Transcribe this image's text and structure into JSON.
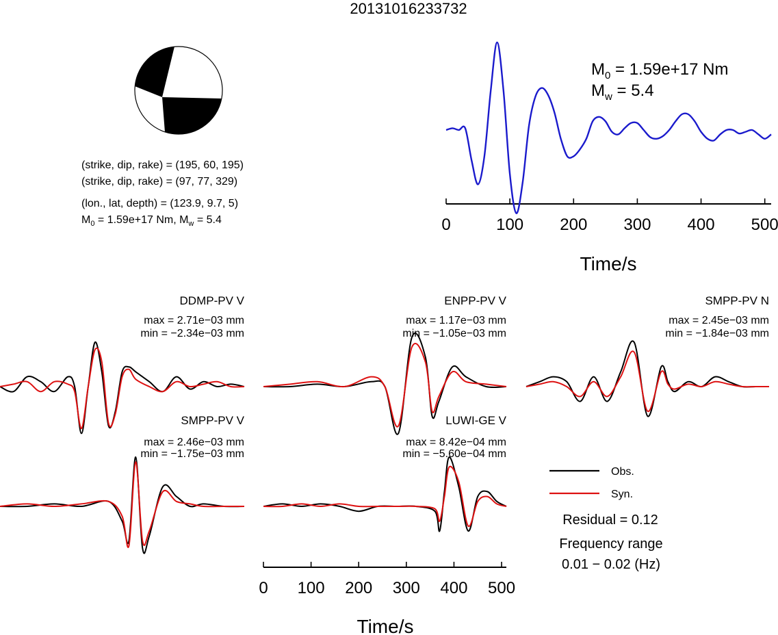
{
  "title": "20131016233732",
  "beachball": {
    "colors": {
      "compressional": "#000000",
      "dilatational": "#ffffff",
      "outline": "#000000"
    }
  },
  "solution": {
    "np1": "(strike, dip, rake) = (195, 60, 195)",
    "np2": "(strike, dip, rake) = (97, 77, 329)",
    "location": "(lon., lat, depth) = (123.9, 9.7, 5)",
    "moment_parts": [
      "M",
      "0",
      " = 1.59e+17 Nm, M",
      "w",
      " = 5.4"
    ]
  },
  "stf_annot": {
    "m0": [
      "M",
      "0",
      " = 1.59e+17 Nm"
    ],
    "mw": [
      "M",
      "w",
      " = 5.4"
    ]
  },
  "legend": {
    "obs_label": "Obs.",
    "syn_label": "Syn.",
    "residual": "Residual = 0.12",
    "freq_title": "Frequency range",
    "freq_value": "0.01 − 0.02 (Hz)"
  },
  "colors": {
    "stf": "#1a1acc",
    "obs": "#000000",
    "syn": "#dd1111"
  },
  "chart_data": [
    {
      "type": "line",
      "name": "source-time-function",
      "xlabel": "Time/s",
      "xlim": [
        0,
        510
      ],
      "ticks": [
        0,
        100,
        200,
        300,
        400,
        500
      ],
      "tick_labels": [
        "0",
        "100",
        "200",
        "300",
        "400",
        "500"
      ],
      "x": [
        0,
        10,
        20,
        30,
        40,
        50,
        60,
        70,
        80,
        90,
        100,
        110,
        120,
        130,
        140,
        150,
        160,
        170,
        180,
        190,
        200,
        210,
        220,
        230,
        240,
        250,
        260,
        270,
        280,
        290,
        300,
        310,
        320,
        330,
        340,
        350,
        360,
        370,
        380,
        390,
        400,
        410,
        420,
        430,
        440,
        450,
        460,
        470,
        480,
        490,
        500,
        510
      ],
      "y": [
        0.0,
        0.02,
        0.0,
        0.02,
        -0.35,
        -0.62,
        -0.3,
        0.45,
        1.0,
        0.45,
        -0.5,
        -0.95,
        -0.6,
        0.05,
        0.38,
        0.48,
        0.4,
        0.2,
        -0.1,
        -0.3,
        -0.3,
        -0.22,
        -0.1,
        0.1,
        0.15,
        0.1,
        -0.02,
        -0.05,
        0.02,
        0.08,
        0.08,
        0.0,
        -0.08,
        -0.1,
        -0.07,
        0.0,
        0.1,
        0.18,
        0.18,
        0.1,
        -0.02,
        -0.1,
        -0.12,
        -0.05,
        0.0,
        0.0,
        -0.04,
        -0.02,
        0.0,
        -0.05,
        -0.1,
        -0.05
      ],
      "ylim": [
        -1.0,
        1.05
      ]
    },
    {
      "type": "line",
      "name": "waveforms",
      "xlabel": "Time/s",
      "xlim": [
        0,
        510
      ],
      "ticks": [
        0,
        100,
        200,
        300,
        400,
        500
      ],
      "tick_labels": [
        "0",
        "100",
        "200",
        "300",
        "400",
        "500"
      ],
      "series_legend": [
        "Obs.",
        "Syn."
      ],
      "stations": [
        {
          "label": "DDMP-PV V",
          "max": "max = 2.71e−03 mm",
          "min": "min = −2.34e−03 mm",
          "t": [
            0,
            20,
            40,
            60,
            80,
            100,
            110,
            120,
            130,
            140,
            150,
            160,
            170,
            180,
            190,
            200,
            220,
            240,
            260,
            280,
            300,
            320,
            340,
            360
          ],
          "obs": [
            0.0,
            -0.1,
            0.2,
            0.1,
            -0.1,
            0.2,
            0.0,
            -0.95,
            0.0,
            0.9,
            0.3,
            -0.8,
            -0.5,
            0.3,
            0.4,
            0.3,
            0.1,
            -0.1,
            0.2,
            -0.05,
            0.1,
            0.0,
            0.05,
            0.0
          ],
          "syn": [
            0.0,
            0.05,
            0.1,
            -0.1,
            0.1,
            0.05,
            -0.1,
            -0.85,
            0.0,
            0.75,
            0.5,
            -0.75,
            -0.55,
            0.2,
            0.35,
            0.15,
            0.0,
            -0.1,
            0.1,
            0.0,
            0.05,
            0.1,
            0.0,
            0.0
          ]
        },
        {
          "label": "ENPP-PV V",
          "max": "max = 1.17e−03 mm",
          "min": "min = −1.05e−03 mm",
          "t": [
            0,
            40,
            80,
            120,
            160,
            180,
            200,
            220,
            240,
            250,
            260,
            280,
            300,
            330,
            360
          ],
          "obs": [
            0.0,
            0.0,
            0.05,
            0.0,
            0.1,
            0.0,
            -0.95,
            1.0,
            0.6,
            -0.6,
            -0.3,
            0.4,
            0.2,
            0.0,
            0.0
          ],
          "syn": [
            0.0,
            0.05,
            0.1,
            0.0,
            0.2,
            0.0,
            -0.8,
            0.8,
            0.5,
            -0.5,
            -0.2,
            0.3,
            0.1,
            0.05,
            0.0
          ]
        },
        {
          "label": "SMPP-PV N",
          "max": "max = 2.45e−03 mm",
          "min": "min = −1.84e−03 mm",
          "t": [
            0,
            20,
            40,
            60,
            80,
            100,
            120,
            140,
            160,
            180,
            200,
            210,
            220,
            240,
            260,
            280,
            300,
            320,
            340,
            360
          ],
          "obs": [
            0.0,
            0.1,
            0.2,
            0.1,
            -0.3,
            0.2,
            -0.3,
            0.3,
            0.9,
            -0.6,
            0.4,
            0.1,
            -0.1,
            0.1,
            0.0,
            0.2,
            0.1,
            0.0,
            0.0,
            0.0
          ],
          "syn": [
            0.0,
            0.05,
            0.1,
            0.0,
            -0.2,
            0.1,
            -0.2,
            0.2,
            0.7,
            -0.5,
            0.3,
            0.05,
            -0.05,
            0.05,
            0.0,
            0.1,
            0.05,
            0.0,
            0.0,
            0.0
          ]
        },
        {
          "label": "SMPP-PV V",
          "max": "max = 2.46e−03 mm",
          "min": "min = −1.75e−03 mm",
          "t": [
            0,
            40,
            80,
            120,
            160,
            180,
            190,
            200,
            210,
            220,
            240,
            260,
            280,
            300,
            330,
            360
          ],
          "obs": [
            0.0,
            0.0,
            0.05,
            0.0,
            0.1,
            -0.3,
            -0.7,
            1.0,
            -0.85,
            -0.6,
            0.4,
            0.2,
            0.0,
            0.05,
            0.0,
            0.0
          ],
          "syn": [
            0.0,
            0.05,
            0.0,
            0.05,
            0.1,
            -0.2,
            -0.8,
            0.9,
            -0.7,
            -0.5,
            0.3,
            0.1,
            0.05,
            0.0,
            0.0,
            0.0
          ]
        },
        {
          "label": "LUWI-GE V",
          "max": "max = 8.42e−04 mm",
          "min": "min = −5.60e−04 mm",
          "t": [
            0,
            40,
            80,
            120,
            160,
            200,
            240,
            280,
            320,
            360,
            370,
            380,
            390,
            410,
            430,
            450,
            470,
            490,
            510
          ],
          "obs": [
            0.0,
            0.05,
            0.0,
            0.05,
            0.0,
            -0.1,
            0.0,
            0.0,
            0.0,
            -0.1,
            -0.5,
            0.3,
            1.0,
            0.4,
            -0.5,
            0.2,
            0.3,
            0.1,
            0.0
          ],
          "syn": [
            0.0,
            0.0,
            0.05,
            0.0,
            0.05,
            0.0,
            0.0,
            0.0,
            0.0,
            -0.05,
            -0.3,
            0.2,
            0.8,
            0.5,
            -0.4,
            0.1,
            0.2,
            0.05,
            0.0
          ]
        }
      ]
    }
  ]
}
